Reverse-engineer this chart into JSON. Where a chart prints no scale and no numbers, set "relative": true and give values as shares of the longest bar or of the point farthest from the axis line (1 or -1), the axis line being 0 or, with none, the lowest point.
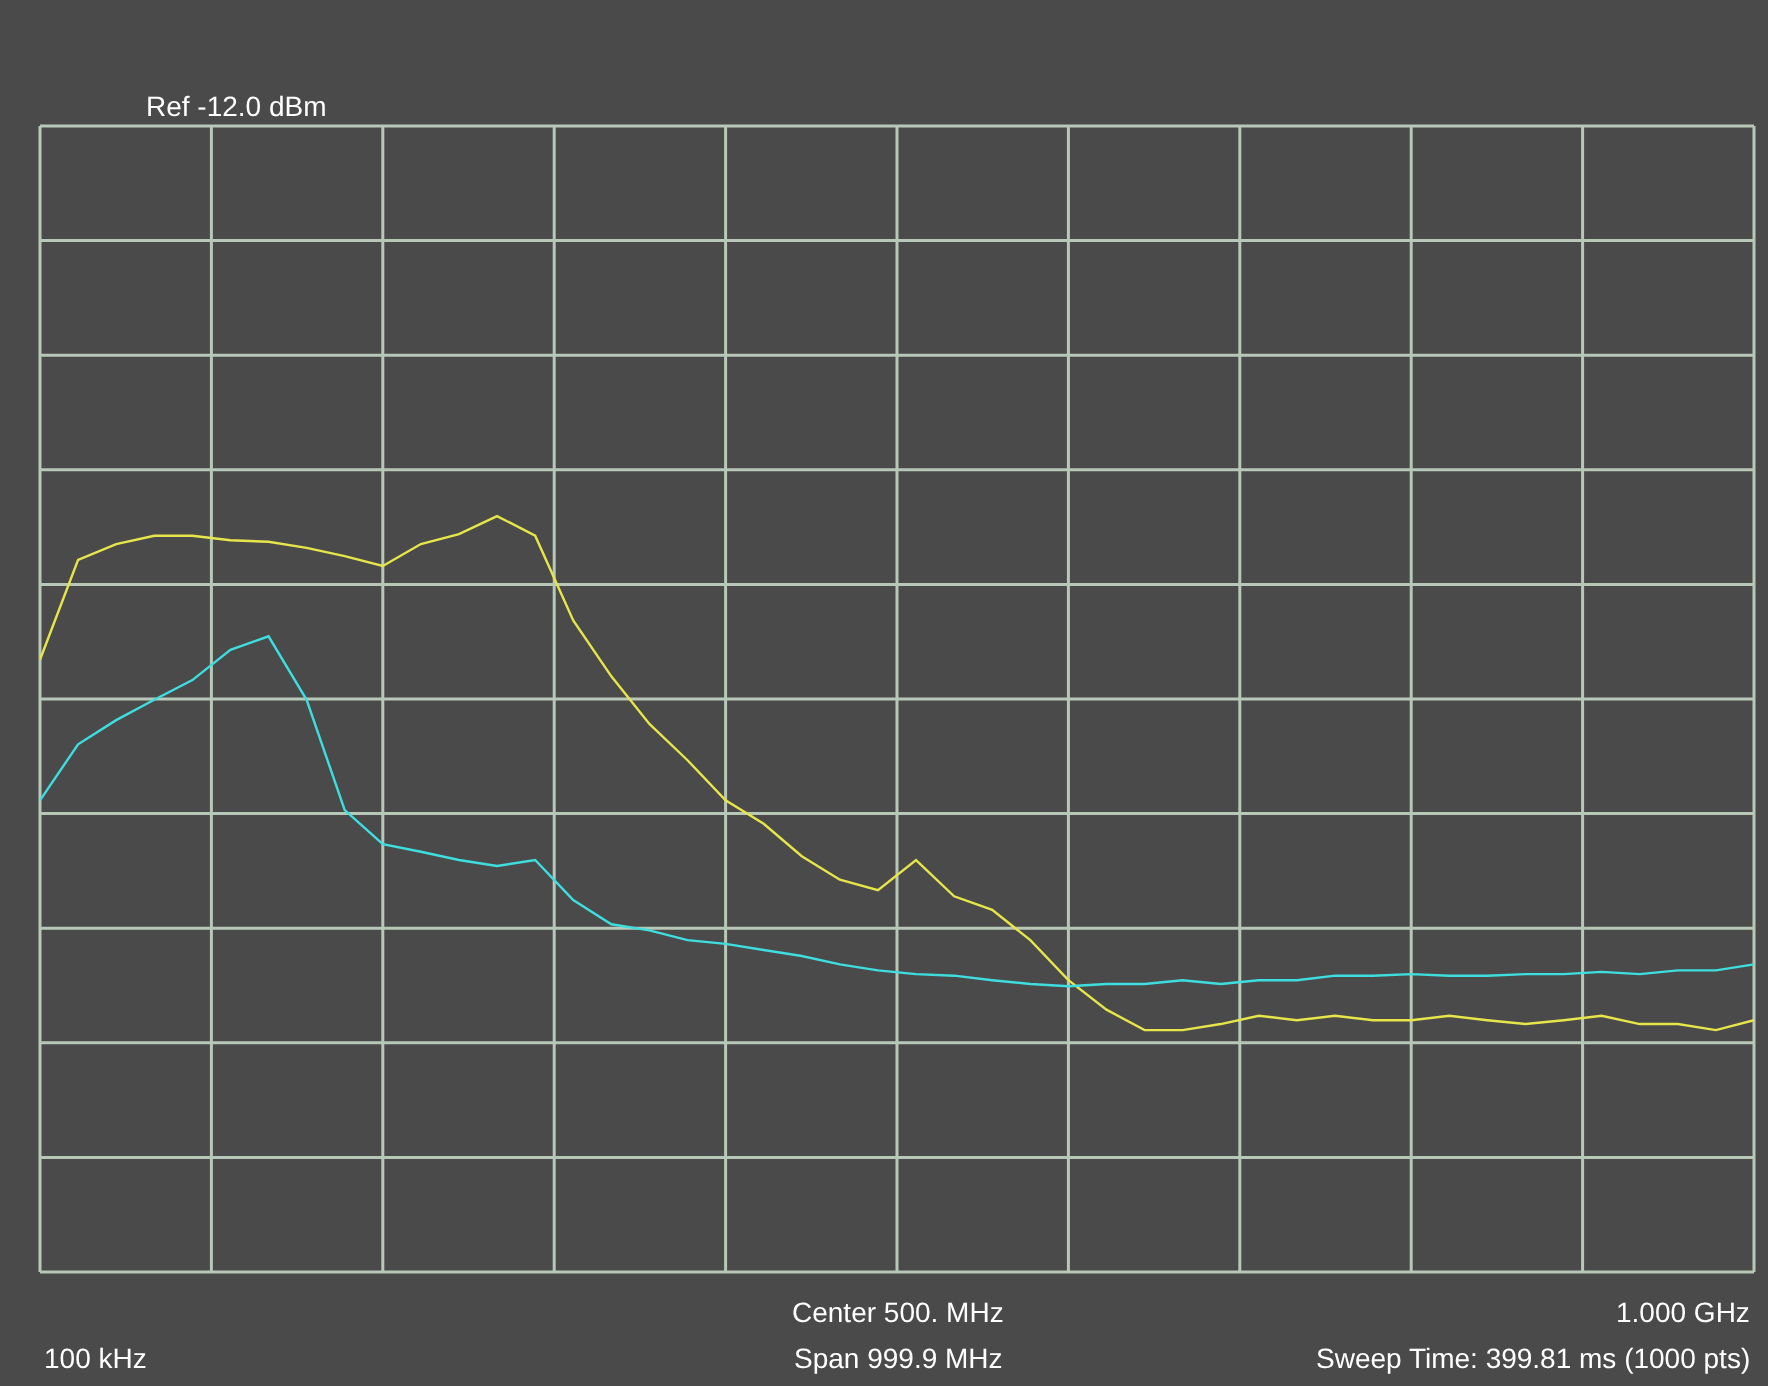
{
  "chart_data": {
    "type": "line",
    "relative": true,
    "grid": true,
    "marker": "none",
    "line_style": "solid",
    "categories": [
      null,
      null,
      null,
      null,
      null,
      null,
      null,
      null,
      null,
      null,
      null,
      null,
      null,
      null,
      null,
      null,
      null,
      null,
      null,
      null,
      null,
      null,
      null,
      null,
      null,
      null,
      null,
      null,
      null,
      null,
      null,
      null,
      null,
      null,
      null,
      null,
      null,
      null,
      null,
      null,
      null,
      null,
      null,
      null,
      null,
      null
    ],
    "series": [
      {
        "color": "#e6e64a",
        "values": [
          0.81,
          0.942,
          0.963,
          0.974,
          0.974,
          0.968,
          0.966,
          0.958,
          0.947,
          0.934,
          0.963,
          0.976,
          1.0,
          0.974,
          0.862,
          0.788,
          0.725,
          0.677,
          0.624,
          0.593,
          0.55,
          0.519,
          0.505,
          0.545,
          0.497,
          0.479,
          0.439,
          0.386,
          0.347,
          0.32,
          0.32,
          0.328,
          0.339,
          0.333,
          0.339,
          0.333,
          0.333,
          0.339,
          0.333,
          0.328,
          0.333,
          0.339,
          0.328,
          0.328,
          0.32,
          0.333
        ]
      },
      {
        "color": "#3fdede",
        "values": [
          0.624,
          0.698,
          0.73,
          0.757,
          0.783,
          0.823,
          0.841,
          0.757,
          0.611,
          0.566,
          0.556,
          0.545,
          0.537,
          0.545,
          0.492,
          0.46,
          0.452,
          0.439,
          0.434,
          0.426,
          0.418,
          0.407,
          0.399,
          0.394,
          0.392,
          0.386,
          0.381,
          0.378,
          0.381,
          0.381,
          0.386,
          0.381,
          0.386,
          0.386,
          0.392,
          0.392,
          0.394,
          0.392,
          0.392,
          0.394,
          0.394,
          0.397,
          0.394,
          0.399,
          0.399,
          0.407
        ]
      }
    ],
    "annotations": [
      "Ref -12.0 dBm",
      "Center 500. MHz",
      "1.000 GHz",
      "100 kHz",
      "Span 999.9 MHz",
      "Sweep Time: 399.81 ms (1000 pts)"
    ]
  }
}
